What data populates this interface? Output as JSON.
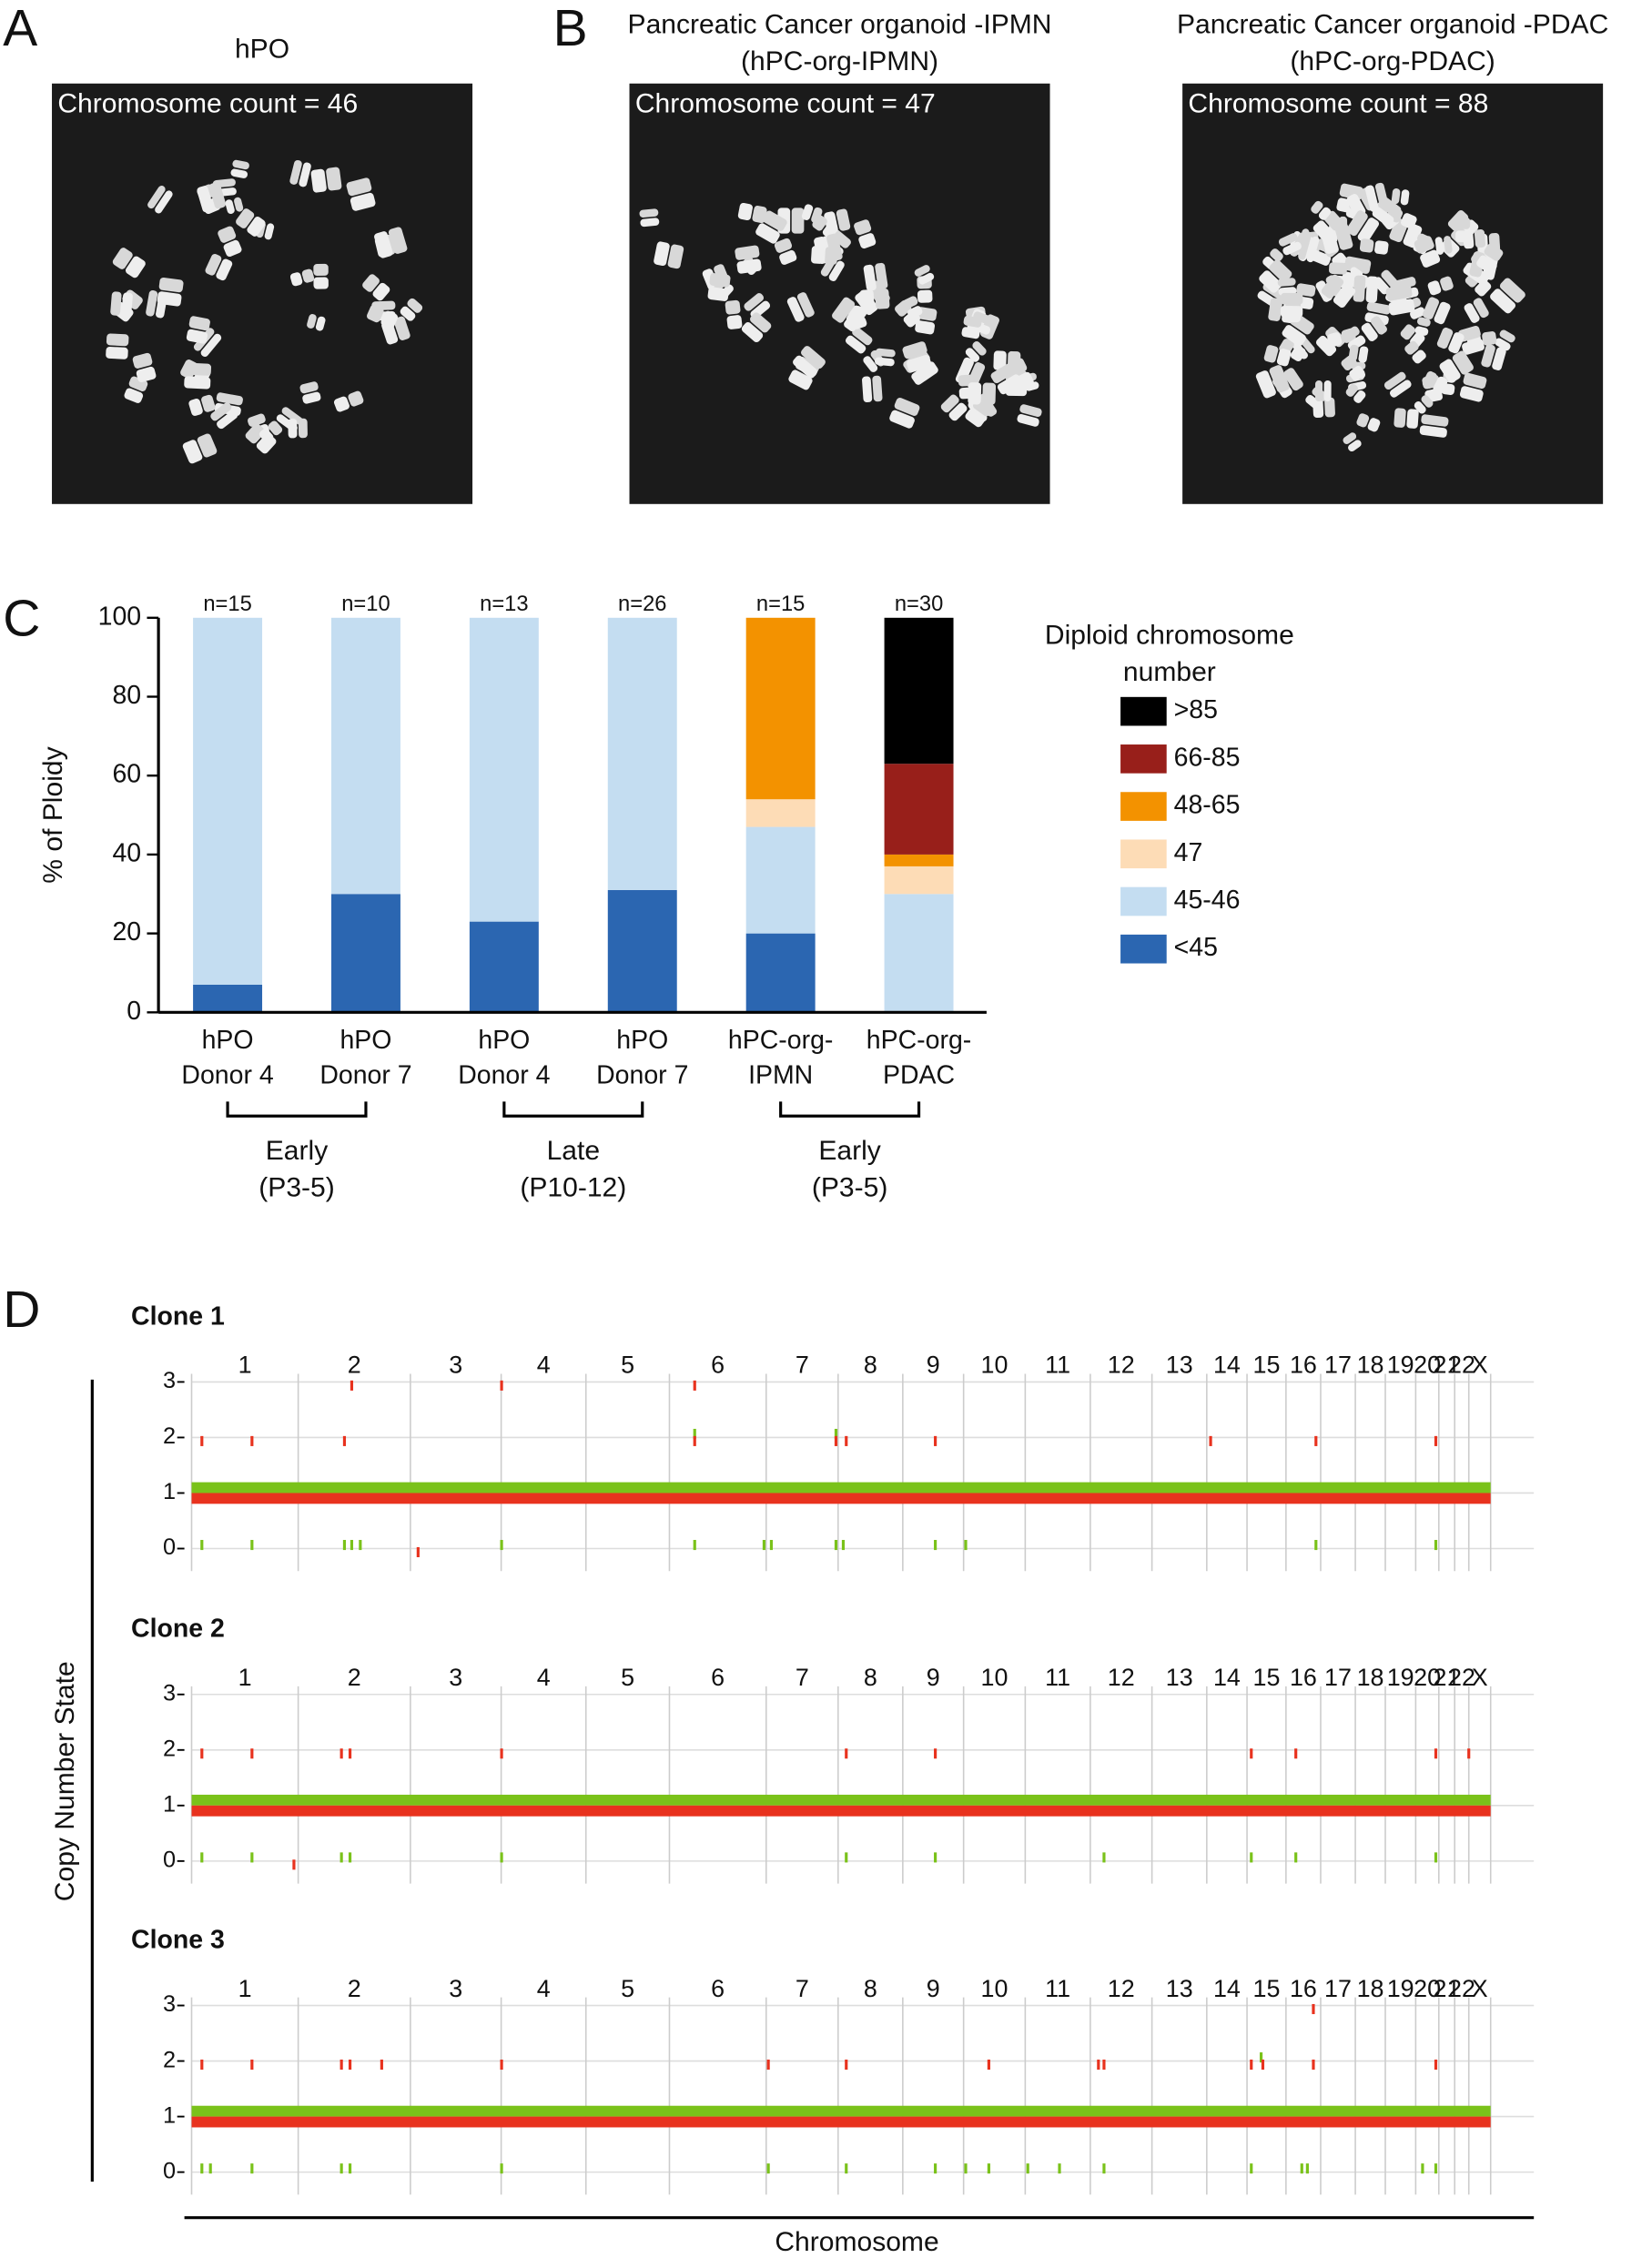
{
  "panel_labels": [
    "A",
    "B",
    "C",
    "D"
  ],
  "images": [
    {
      "title": "hPO",
      "caption": "Chromosome count = 46"
    },
    {
      "title": "Pancreatic Cancer organoid -IPMN\n(hPC-org-IPMN)",
      "caption": "Chromosome count = 47"
    },
    {
      "title": "Pancreatic Cancer organoid -PDAC\n(hPC-org-PDAC)",
      "caption": "Chromosome count = 88"
    }
  ],
  "copy_number_axes": {
    "ylabel": "Copy Number State",
    "xlabel": "Chromosome"
  },
  "chart_data": [
    {
      "type": "bar",
      "stacked": true,
      "ylabel": "% of Ploidy",
      "categories": [
        "hPO\nDonor 4",
        "hPO\nDonor 7",
        "hPO\nDonor 4",
        "hPO\nDonor 7",
        "hPC-org-\nIPMN",
        "hPC-org-\nPDAC"
      ],
      "n_labels": [
        "n=15",
        "n=10",
        "n=13",
        "n=26",
        "n=15",
        "n=30"
      ],
      "group_labels": [
        "Early\n(P3-5)",
        "Late\n(P10-12)",
        "Early\n(P3-5)"
      ],
      "legend_title": "Diploid chromosome\nnumber",
      "legend": "right",
      "ylim": [
        0,
        100
      ],
      "yticks": [
        0,
        20,
        40,
        60,
        80,
        100
      ],
      "series": [
        {
          "name": "<45",
          "color": "#2b66b1",
          "values": [
            7,
            30,
            23,
            31,
            20,
            0
          ]
        },
        {
          "name": "45-46",
          "color": "#c4ddf1",
          "values": [
            93,
            70,
            77,
            69,
            27,
            30
          ]
        },
        {
          "name": "47",
          "color": "#fddcb6",
          "values": [
            0,
            0,
            0,
            0,
            7,
            7
          ]
        },
        {
          "name": "48-65",
          "color": "#f39200",
          "values": [
            0,
            0,
            0,
            0,
            46,
            3
          ]
        },
        {
          "name": "66-85",
          "color": "#981f1a",
          "values": [
            0,
            0,
            0,
            0,
            0,
            23
          ]
        },
        {
          "name": ">85",
          "color": "#000000",
          "values": [
            0,
            0,
            0,
            0,
            0,
            37
          ]
        }
      ]
    },
    {
      "type": "segment",
      "title": "Clone 1",
      "categories": [
        "1",
        "2",
        "3",
        "4",
        "5",
        "6",
        "7",
        "8",
        "9",
        "10",
        "11",
        "12",
        "13",
        "14",
        "15",
        "16",
        "17",
        "18",
        "19",
        "20",
        "21",
        "22",
        "X"
      ],
      "chromosome_bounds": [
        0,
        249,
        511,
        723,
        921,
        1116,
        1342,
        1510,
        1661,
        1803,
        1947,
        2099,
        2243,
        2371,
        2465,
        2556,
        2637,
        2718,
        2788,
        2859,
        2913,
        2950,
        2983,
        3034
      ],
      "xlim": [
        0,
        3034
      ],
      "ylim": [
        -0.25,
        3.25
      ],
      "yticks": [
        0,
        1,
        2,
        3
      ],
      "grid": true,
      "series": [
        {
          "color": "#7ac21a",
          "x": [
            0
          ],
          "x_end": [
            3034
          ],
          "values": [
            1
          ]
        },
        {
          "color": "#e8321e",
          "x": [
            0
          ],
          "x_end": [
            3034
          ],
          "values": [
            1
          ]
        },
        {
          "color": "#7ac21a",
          "x": [
            1175,
            1505,
            24,
            141,
            357,
            374,
            394,
            724,
            1175,
            1337,
            1354,
            1505,
            1522,
            1737,
            1808,
            2626,
            2906
          ],
          "values": [
            2,
            2,
            0,
            0,
            0,
            0,
            0,
            0,
            0,
            0,
            0,
            0,
            0,
            0,
            0,
            0,
            0
          ]
        },
        {
          "color": "#e8321e",
          "x": [
            374,
            724,
            1175,
            24,
            141,
            357,
            1175,
            1505,
            1529,
            1737,
            2380,
            2626,
            2906,
            529
          ],
          "values": [
            3,
            3,
            3,
            2,
            2,
            2,
            2,
            2,
            2,
            2,
            2,
            2,
            2,
            0
          ]
        }
      ]
    },
    {
      "type": "segment",
      "title": "Clone 2",
      "categories": [
        "1",
        "2",
        "3",
        "4",
        "5",
        "6",
        "7",
        "8",
        "9",
        "10",
        "11",
        "12",
        "13",
        "14",
        "15",
        "16",
        "17",
        "18",
        "19",
        "20",
        "21",
        "22",
        "X"
      ],
      "chromosome_bounds": [
        0,
        249,
        511,
        723,
        921,
        1116,
        1342,
        1510,
        1661,
        1803,
        1947,
        2099,
        2243,
        2371,
        2465,
        2556,
        2637,
        2718,
        2788,
        2859,
        2913,
        2950,
        2983,
        3034
      ],
      "xlim": [
        0,
        3034
      ],
      "ylim": [
        -0.25,
        3.25
      ],
      "yticks": [
        0,
        1,
        2,
        3
      ],
      "grid": true,
      "series": [
        {
          "color": "#7ac21a",
          "x": [
            0
          ],
          "x_end": [
            3034
          ],
          "values": [
            1
          ]
        },
        {
          "color": "#e8321e",
          "x": [
            0
          ],
          "x_end": [
            3034
          ],
          "values": [
            1
          ]
        },
        {
          "color": "#7ac21a",
          "x": [
            24,
            141,
            350,
            370,
            724,
            1529,
            1737,
            2131,
            2475,
            2579,
            2906
          ],
          "values": [
            0,
            0,
            0,
            0,
            0,
            0,
            0,
            0,
            0,
            0,
            0
          ]
        },
        {
          "color": "#e8321e",
          "x": [
            24,
            141,
            350,
            370,
            724,
            1529,
            1737,
            2475,
            2579,
            2906,
            2983,
            239
          ],
          "values": [
            2,
            2,
            2,
            2,
            2,
            2,
            2,
            2,
            2,
            2,
            2,
            0
          ]
        }
      ]
    },
    {
      "type": "segment",
      "title": "Clone 3",
      "categories": [
        "1",
        "2",
        "3",
        "4",
        "5",
        "6",
        "7",
        "8",
        "9",
        "10",
        "11",
        "12",
        "13",
        "14",
        "15",
        "16",
        "17",
        "18",
        "19",
        "20",
        "21",
        "22",
        "X"
      ],
      "chromosome_bounds": [
        0,
        249,
        511,
        723,
        921,
        1116,
        1342,
        1510,
        1661,
        1803,
        1947,
        2099,
        2243,
        2371,
        2465,
        2556,
        2637,
        2718,
        2788,
        2859,
        2913,
        2950,
        2983,
        3034
      ],
      "xlim": [
        0,
        3034
      ],
      "ylim": [
        -0.25,
        3.25
      ],
      "yticks": [
        0,
        1,
        2,
        3
      ],
      "grid": true,
      "series": [
        {
          "color": "#7ac21a",
          "x": [
            0
          ],
          "x_end": [
            3034
          ],
          "values": [
            1
          ]
        },
        {
          "color": "#e8321e",
          "x": [
            0
          ],
          "x_end": [
            3034
          ],
          "values": [
            1
          ]
        },
        {
          "color": "#7ac21a",
          "x": [
            2498,
            24,
            44,
            141,
            350,
            370,
            724,
            1347,
            1529,
            1737,
            1808,
            1862,
            1953,
            2027,
            2131,
            2475,
            2593,
            2606,
            2875,
            2906
          ],
          "values": [
            2,
            0,
            0,
            0,
            0,
            0,
            0,
            0,
            0,
            0,
            0,
            0,
            0,
            0,
            0,
            0,
            0,
            0,
            0,
            0
          ]
        },
        {
          "color": "#e8321e",
          "x": [
            2620,
            24,
            141,
            350,
            370,
            444,
            724,
            1347,
            1529,
            1862,
            2118,
            2131,
            2475,
            2502,
            2620,
            2906
          ],
          "values": [
            3,
            2,
            2,
            2,
            2,
            2,
            2,
            2,
            2,
            2,
            2,
            2,
            2,
            2,
            2,
            2
          ]
        }
      ]
    }
  ]
}
